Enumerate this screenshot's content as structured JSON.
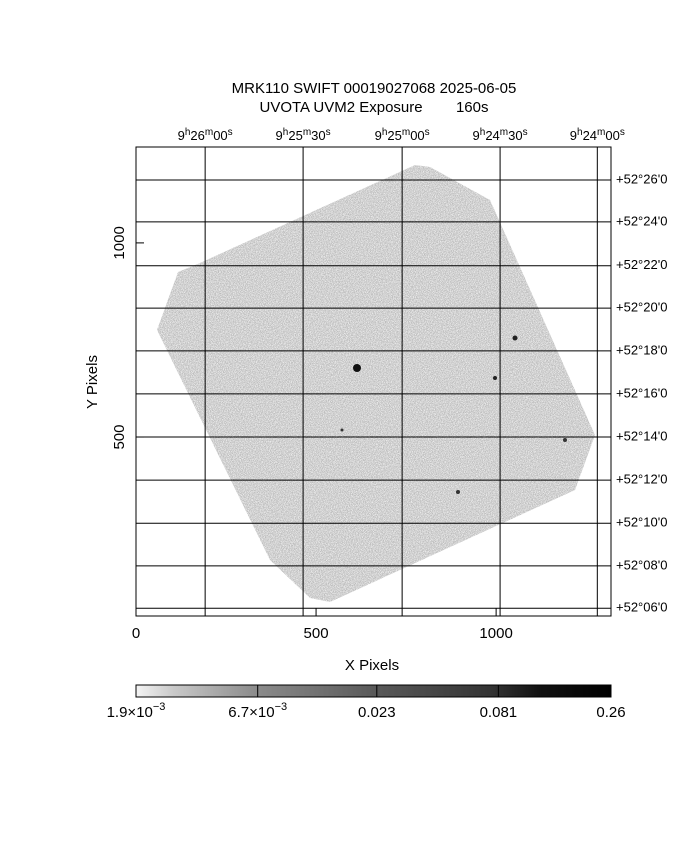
{
  "chart_data": {
    "type": "image",
    "title": "MRK110 SWIFT 00019027068 2025-06-05",
    "subtitle": "UVOTA UVM2 Exposure        160s",
    "xlabel": "X Pixels",
    "ylabel": "Y Pixels",
    "xlim": [
      0,
      1319
    ],
    "ylim": [
      39,
      1247
    ],
    "xticks": [
      0,
      500,
      1000
    ],
    "yticks": [
      500,
      1000
    ],
    "ra_ticks": [
      {
        "value": 192,
        "label": "9h26m00s"
      },
      {
        "value": 464,
        "label": "9h25m30s"
      },
      {
        "value": 739,
        "label": "9h25m00s"
      },
      {
        "value": 1011,
        "label": "9h24m30s"
      },
      {
        "value": 1281,
        "label": "9h24m00s"
      }
    ],
    "dec_ticks": [
      {
        "value": 1162,
        "label": "+52°26'0"
      },
      {
        "value": 1054,
        "label": "+52°24'0"
      },
      {
        "value": 941,
        "label": "+52°22'0"
      },
      {
        "value": 832,
        "label": "+52°20'0"
      },
      {
        "value": 722,
        "label": "+52°18'0"
      },
      {
        "value": 611,
        "label": "+52°16'0"
      },
      {
        "value": 500,
        "label": "+52°14'0"
      },
      {
        "value": 389,
        "label": "+52°12'0"
      },
      {
        "value": 278,
        "label": "+52°10'0"
      },
      {
        "value": 168,
        "label": "+52°08'0"
      },
      {
        "value": 59,
        "label": "+52°06'0"
      }
    ],
    "grid": true,
    "colorbar": {
      "log_scale": true,
      "lim": [
        0.0019,
        0.26
      ],
      "ticks": [
        {
          "value": 0.0019,
          "label": "1.9×10−3"
        },
        {
          "value": 0.0067,
          "label": "6.7×10−3"
        },
        0.023,
        0.081,
        0.26
      ]
    }
  }
}
